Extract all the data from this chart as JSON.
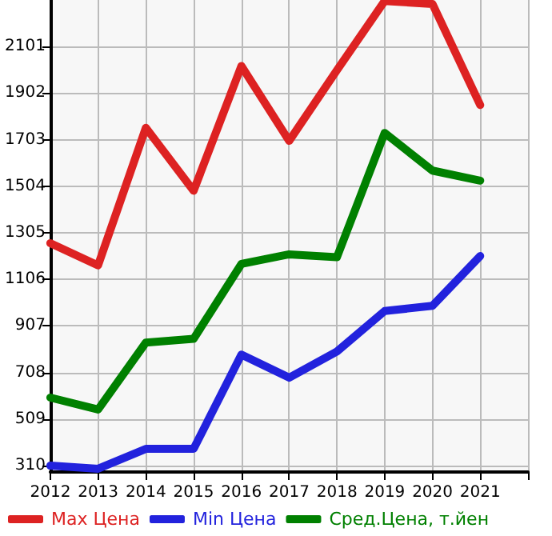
{
  "chart_data": {
    "type": "line",
    "x": [
      2012,
      2013,
      2014,
      2015,
      2016,
      2017,
      2018,
      2019,
      2020,
      2021
    ],
    "xlim": [
      2012,
      2022
    ],
    "xticks": [
      2012,
      2013,
      2014,
      2015,
      2016,
      2017,
      2018,
      2019,
      2020,
      2021,
      {
        "value": 2022,
        "label": null
      }
    ],
    "ylim": [
      283,
      2300
    ],
    "yticks": [
      310,
      509,
      708,
      907,
      1106,
      1305,
      1504,
      1703,
      1902,
      2101
    ],
    "series": [
      {
        "name": "Max Цена",
        "color": "#dd2222",
        "values": [
          1261,
          1166,
          1754,
          1485,
          2018,
          1698,
          2000,
          2296,
          2283,
          1851
        ]
      },
      {
        "name": "Min Цена",
        "color": "#2222dd",
        "values": [
          310,
          297,
          382,
          382,
          785,
          686,
          798,
          971,
          993,
          1206
        ]
      },
      {
        "name": "Сред.Цена, т.йен",
        "color": "#008000",
        "values": [
          601,
          550,
          836,
          852,
          1172,
          1213,
          1201,
          1732,
          1571,
          1528
        ]
      }
    ],
    "grid": true,
    "legend": "bottom",
    "marker": "none",
    "line_style": "solid"
  }
}
